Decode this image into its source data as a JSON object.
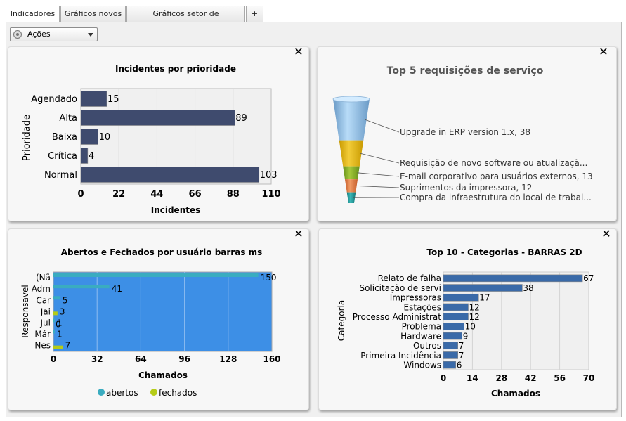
{
  "tabs": [
    {
      "label": "Indicadores",
      "active": true
    },
    {
      "label": "Gráficos novos",
      "active": false
    },
    {
      "label": "Gráficos setor de atendimento",
      "active": false
    },
    {
      "label": "+",
      "active": false
    }
  ],
  "toolbar": {
    "acoes_label": "Ações"
  },
  "panels": [
    {
      "id": "p1",
      "close_label": "✕"
    },
    {
      "id": "p2",
      "close_label": "✕"
    },
    {
      "id": "p3",
      "close_label": "✕"
    },
    {
      "id": "p4",
      "close_label": "✕"
    }
  ],
  "chart_data": [
    {
      "type": "bar",
      "orientation": "horizontal",
      "title": "Incidentes por prioridade",
      "xlabel": "Incidentes",
      "ylabel": "Prioridade",
      "categories": [
        "Agendado",
        "Alta",
        "Baixa",
        "Crítica",
        "Normal"
      ],
      "values": [
        15,
        89,
        10,
        4,
        103
      ],
      "data_labels": [
        "15",
        "89",
        "10",
        "4",
        "103"
      ],
      "xlim": [
        0,
        110
      ],
      "xticks": [
        "0",
        "22",
        "44",
        "66",
        "88",
        "110"
      ],
      "grid": true,
      "color": "#3f4b6e"
    },
    {
      "type": "funnel",
      "title": "Top 5 requisições de serviço",
      "categories": [
        "Upgrade in ERP version 1.x",
        "Requisição de novo software ou atualizaçã...",
        "E-mail corporativo para usuários externos",
        "Suprimentos da impressora",
        "Compra da infraestrutura do local de trabal..."
      ],
      "labels": [
        "Upgrade in ERP version 1.x, 38",
        "Requisição de novo software ou atualizaçã...",
        "E-mail corporativo para usuários externos, 13",
        "Suprimentos da impressora, 12",
        "Compra da infraestrutura do local de trabal..."
      ],
      "values": [
        38,
        26,
        13,
        12,
        8
      ],
      "colors": [
        "#8fbde6",
        "#e2b40c",
        "#82aa22",
        "#e2773c",
        "#1a9a9a"
      ]
    },
    {
      "type": "bar",
      "orientation": "horizontal",
      "title": "Abertos e Fechados por usuário barras ms",
      "xlabel": "Chamados",
      "ylabel": "Responsavel",
      "categories": [
        "(Nã",
        "Adm",
        "Car",
        "Jai",
        "Jul",
        "Már",
        "Nes"
      ],
      "series": [
        {
          "name": "abertos",
          "values": [
            150,
            41,
            5,
            0,
            1,
            1,
            0
          ],
          "labels": [
            "150",
            "41",
            "5",
            "",
            "1",
            "1",
            ""
          ],
          "color": "#3aacc0"
        },
        {
          "name": "fechados",
          "values": [
            0,
            0,
            0,
            3,
            0,
            0,
            7
          ],
          "labels": [
            "",
            "",
            "",
            "3",
            "0",
            "",
            "7"
          ],
          "color": "#b5cc18"
        }
      ],
      "xlim": [
        0,
        160
      ],
      "xticks": [
        "0",
        "32",
        "64",
        "96",
        "128",
        "160"
      ],
      "legend": "bottom",
      "grid": true,
      "plot_background": "#3d8fe6"
    },
    {
      "type": "bar",
      "orientation": "horizontal",
      "title": "Top 10 - Categorias - BARRAS 2D",
      "xlabel": "Chamados",
      "ylabel": "Categoria",
      "categories": [
        "Relato de falha",
        "Solicitação de servi",
        "Impressoras",
        "Estações",
        "Processo Administrat",
        "Problema",
        "Hardware",
        "Outros",
        "Primeira Incidência",
        "Windows"
      ],
      "values": [
        67,
        38,
        17,
        12,
        12,
        10,
        9,
        7,
        7,
        6
      ],
      "data_labels": [
        "67",
        "38",
        "17",
        "12",
        "12",
        "10",
        "9",
        "7",
        "7",
        "6"
      ],
      "xlim": [
        0,
        70
      ],
      "xticks": [
        "0",
        "14",
        "28",
        "42",
        "56",
        "70"
      ],
      "grid": true,
      "color": "#3a6aa8"
    }
  ]
}
